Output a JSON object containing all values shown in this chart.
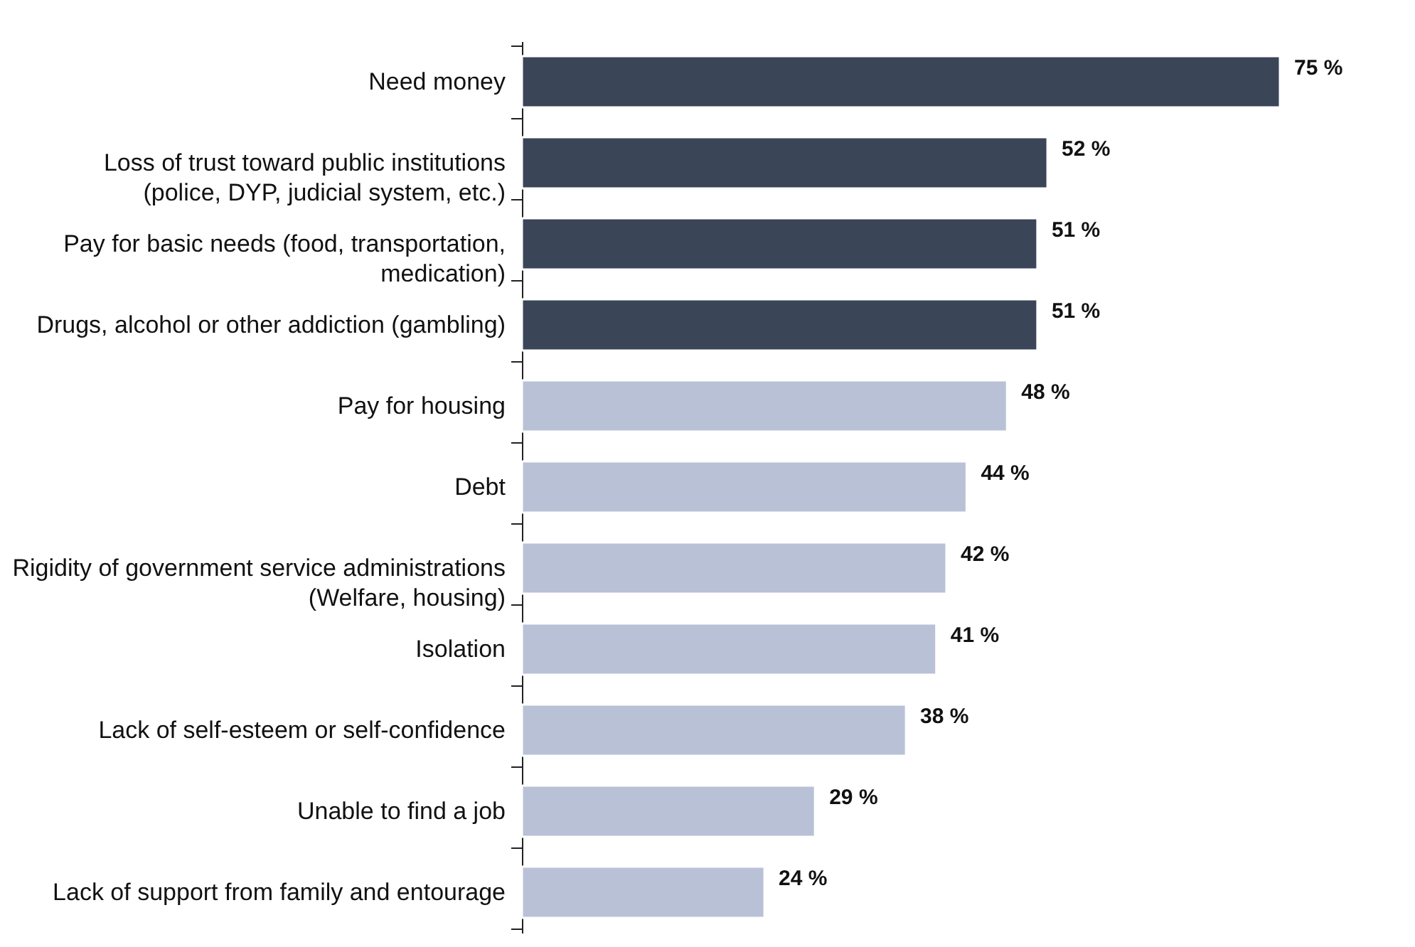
{
  "chart_data": {
    "type": "bar",
    "orientation": "horizontal",
    "categories": [
      "Need money",
      "Loss of trust toward public institutions (police, DYP, judicial system, etc.)",
      "Pay for basic needs (food, transportation, medication)",
      "Drugs, alcohol or other addiction (gambling)",
      "Pay for housing",
      "Debt",
      "Rigidity of government service administrations (Welfare, housing)",
      "Isolation",
      "Lack of self-esteem or self-confidence",
      "Unable to find a job",
      "Lack of support from family and entourage"
    ],
    "values": [
      75,
      52,
      51,
      51,
      48,
      44,
      42,
      41,
      38,
      29,
      24
    ],
    "value_labels": [
      "75 %",
      "52 %",
      "51 %",
      "51 %",
      "48 %",
      "44 %",
      "42 %",
      "41 %",
      "38 %",
      "29 %",
      "24 %"
    ],
    "colors": [
      "#3b4558",
      "#3b4558",
      "#3b4558",
      "#3b4558",
      "#b9c1d6",
      "#b9c1d6",
      "#b9c1d6",
      "#b9c1d6",
      "#b9c1d6",
      "#b9c1d6",
      "#b9c1d6"
    ],
    "tick_labels": "y",
    "grid": false
  }
}
